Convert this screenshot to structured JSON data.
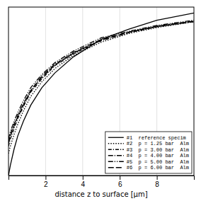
{
  "chart_data": {
    "type": "line",
    "xlabel": "distance z to surface [μm]",
    "xlim": [
      0,
      10
    ],
    "ylim": [
      1.15,
      0
    ],
    "xticks": [
      2,
      4,
      6,
      8
    ],
    "tick_labels": "x",
    "grid": true,
    "legend": "bottom-right",
    "x": [
      0,
      0.1,
      0.3,
      0.5,
      0.8,
      1.2,
      1.8,
      2.5,
      3.5,
      5.0,
      6.5,
      8.0,
      10.0
    ],
    "series": [
      {
        "name": "#1  reference specim",
        "color": "#000000",
        "line_style": "solid",
        "values": [
          1.15,
          1.08,
          0.97,
          0.88,
          0.78,
          0.67,
          0.55,
          0.45,
          0.34,
          0.22,
          0.15,
          0.09,
          0.04
        ]
      },
      {
        "name": "#2  p = 1.25 bar  Alm",
        "color": "#000000",
        "line_style": "dotted",
        "values": [
          1.0,
          0.95,
          0.87,
          0.8,
          0.71,
          0.61,
          0.51,
          0.42,
          0.33,
          0.24,
          0.18,
          0.14,
          0.1
        ]
      },
      {
        "name": "#3  p = 3.00 bar  Alm",
        "color": "#000000",
        "line_style": "dashdot",
        "values": [
          0.95,
          0.9,
          0.83,
          0.76,
          0.68,
          0.58,
          0.49,
          0.4,
          0.32,
          0.23,
          0.175,
          0.135,
          0.1
        ]
      },
      {
        "name": "#4  p = 4.00 bar  Alm",
        "color": "#000000",
        "line_style": "longdashdot",
        "values": [
          0.92,
          0.87,
          0.8,
          0.74,
          0.66,
          0.57,
          0.47,
          0.39,
          0.31,
          0.22,
          0.17,
          0.13,
          0.095
        ]
      },
      {
        "name": "#5  p = 5.00 bar  Alm",
        "color": "#000000",
        "line_style": "dashdotdot",
        "values": [
          0.9,
          0.85,
          0.78,
          0.72,
          0.64,
          0.55,
          0.46,
          0.38,
          0.3,
          0.21,
          0.165,
          0.125,
          0.09
        ]
      },
      {
        "name": "#6  p = 6.00 bar  Alm",
        "color": "#000000",
        "line_style": "dashed",
        "values": [
          0.93,
          0.88,
          0.81,
          0.75,
          0.67,
          0.57,
          0.48,
          0.395,
          0.315,
          0.225,
          0.172,
          0.132,
          0.097
        ]
      }
    ]
  }
}
